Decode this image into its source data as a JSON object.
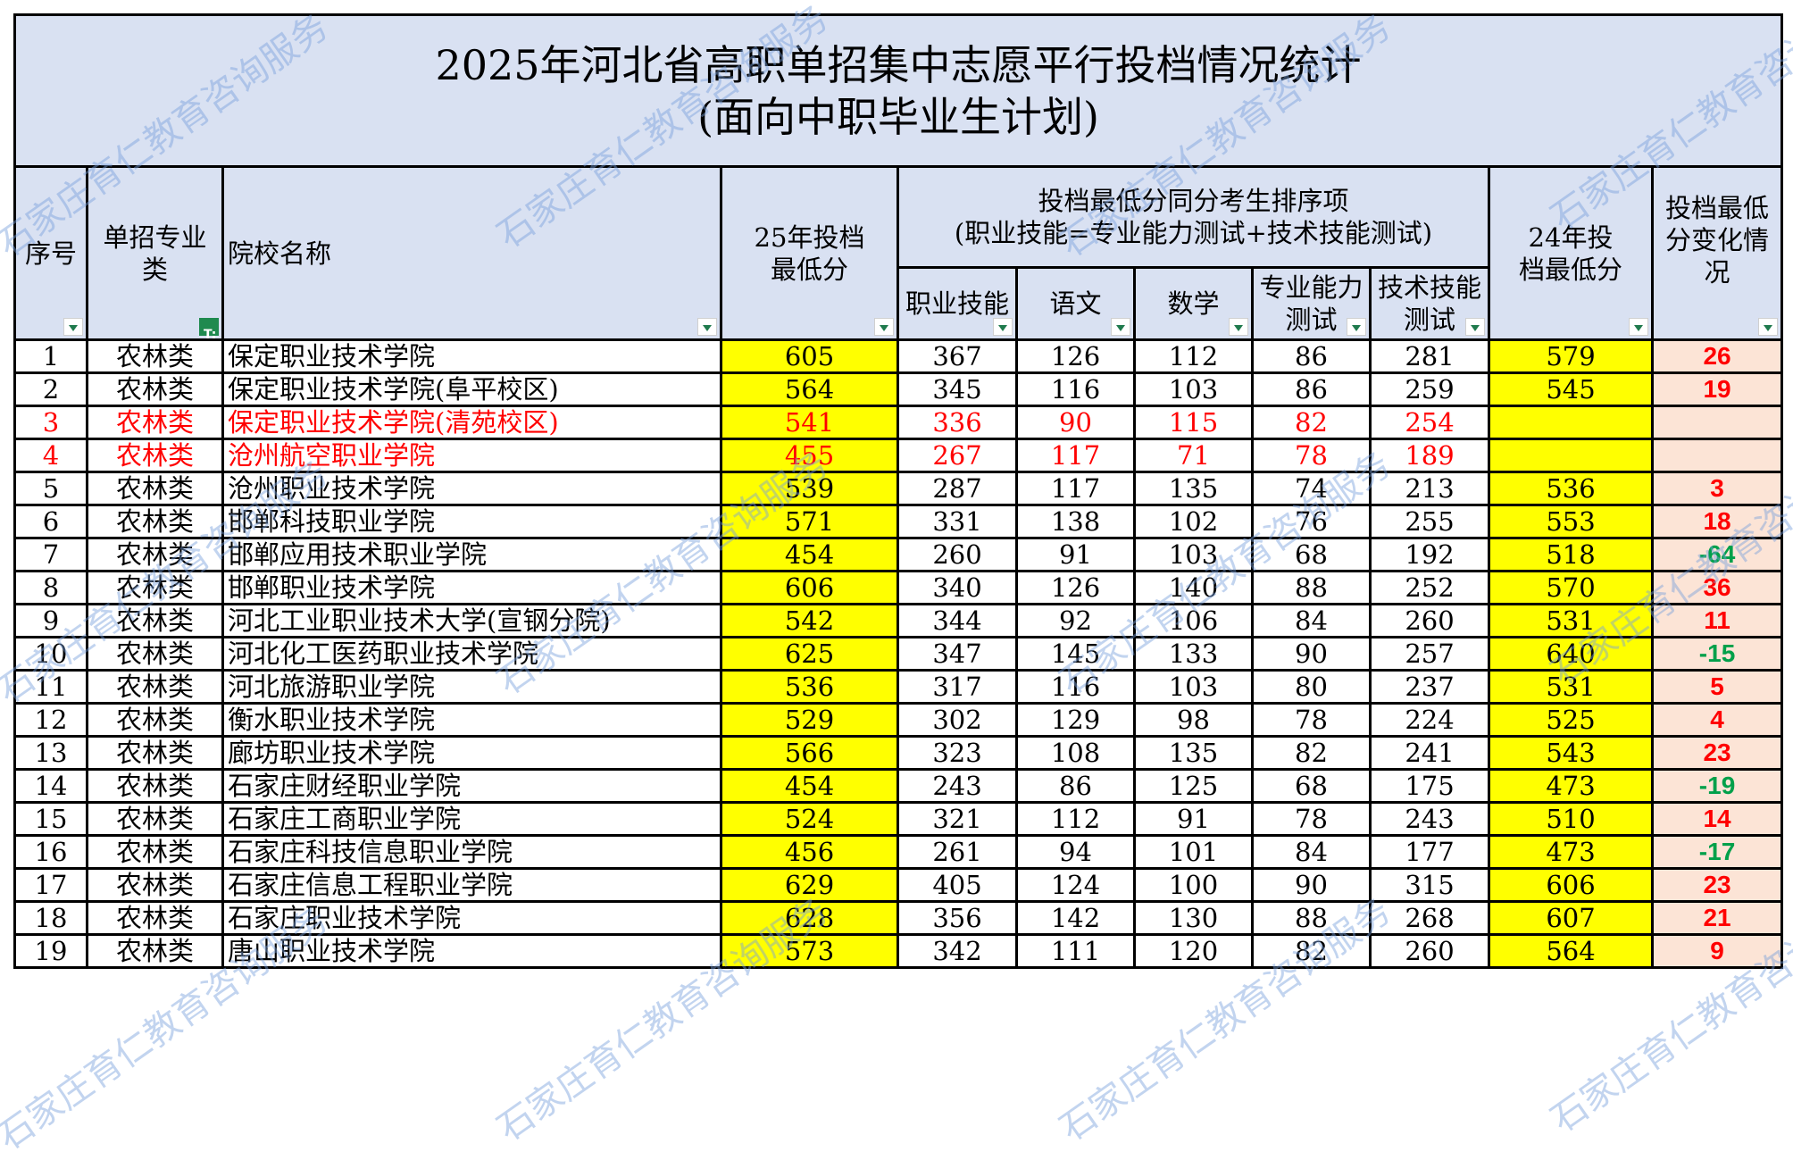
{
  "title": {
    "line1": "2025年河北省高职单招集中志愿平行投档情况统计",
    "line2": "(面向中职毕业生计划)"
  },
  "headers": {
    "index": "序号",
    "category": "单招专业类",
    "school": "院校名称",
    "min25": "25年投档最低分",
    "tiebreak_group_line1": "投档最低分同分考生排序项",
    "tiebreak_group_line2": "(职业技能=专业能力测试+技术技能测试)",
    "vocational": "职业技能",
    "chinese": "语文",
    "math": "数学",
    "professional": "专业能力测试",
    "technical": "技术技能测试",
    "min24": "24年投档最低分",
    "change": "投档最低分变化情况"
  },
  "filters": {
    "active_column": "单招专业类"
  },
  "colors": {
    "header_bg": "#d9e1f2",
    "highlight_yellow": "#ffff00",
    "change_bg": "#fce4d6",
    "positive_change": "#ff0000",
    "negative_change": "#00a04a",
    "highlight_row_text": "#ff0000"
  },
  "rows": [
    {
      "index": "1",
      "category": "农林类",
      "school": "保定职业技术学院",
      "min25": "605",
      "vocational": "367",
      "chinese": "126",
      "math": "112",
      "professional": "86",
      "technical": "281",
      "min24": "579",
      "change": "26",
      "highlight": false
    },
    {
      "index": "2",
      "category": "农林类",
      "school": "保定职业技术学院(阜平校区)",
      "min25": "564",
      "vocational": "345",
      "chinese": "116",
      "math": "103",
      "professional": "86",
      "technical": "259",
      "min24": "545",
      "change": "19",
      "highlight": false
    },
    {
      "index": "3",
      "category": "农林类",
      "school": "保定职业技术学院(清苑校区)",
      "min25": "541",
      "vocational": "336",
      "chinese": "90",
      "math": "115",
      "professional": "82",
      "technical": "254",
      "min24": "",
      "change": "",
      "highlight": true
    },
    {
      "index": "4",
      "category": "农林类",
      "school": "沧州航空职业学院",
      "min25": "455",
      "vocational": "267",
      "chinese": "117",
      "math": "71",
      "professional": "78",
      "technical": "189",
      "min24": "",
      "change": "",
      "highlight": true
    },
    {
      "index": "5",
      "category": "农林类",
      "school": "沧州职业技术学院",
      "min25": "539",
      "vocational": "287",
      "chinese": "117",
      "math": "135",
      "professional": "74",
      "technical": "213",
      "min24": "536",
      "change": "3",
      "highlight": false
    },
    {
      "index": "6",
      "category": "农林类",
      "school": "邯郸科技职业学院",
      "min25": "571",
      "vocational": "331",
      "chinese": "138",
      "math": "102",
      "professional": "76",
      "technical": "255",
      "min24": "553",
      "change": "18",
      "highlight": false
    },
    {
      "index": "7",
      "category": "农林类",
      "school": "邯郸应用技术职业学院",
      "min25": "454",
      "vocational": "260",
      "chinese": "91",
      "math": "103",
      "professional": "68",
      "technical": "192",
      "min24": "518",
      "change": "-64",
      "highlight": false
    },
    {
      "index": "8",
      "category": "农林类",
      "school": "邯郸职业技术学院",
      "min25": "606",
      "vocational": "340",
      "chinese": "126",
      "math": "140",
      "professional": "88",
      "technical": "252",
      "min24": "570",
      "change": "36",
      "highlight": false
    },
    {
      "index": "9",
      "category": "农林类",
      "school": "河北工业职业技术大学(宣钢分院)",
      "min25": "542",
      "vocational": "344",
      "chinese": "92",
      "math": "106",
      "professional": "84",
      "technical": "260",
      "min24": "531",
      "change": "11",
      "highlight": false
    },
    {
      "index": "10",
      "category": "农林类",
      "school": "河北化工医药职业技术学院",
      "min25": "625",
      "vocational": "347",
      "chinese": "145",
      "math": "133",
      "professional": "90",
      "technical": "257",
      "min24": "640",
      "change": "-15",
      "highlight": false
    },
    {
      "index": "11",
      "category": "农林类",
      "school": "河北旅游职业学院",
      "min25": "536",
      "vocational": "317",
      "chinese": "116",
      "math": "103",
      "professional": "80",
      "technical": "237",
      "min24": "531",
      "change": "5",
      "highlight": false
    },
    {
      "index": "12",
      "category": "农林类",
      "school": "衡水职业技术学院",
      "min25": "529",
      "vocational": "302",
      "chinese": "129",
      "math": "98",
      "professional": "78",
      "technical": "224",
      "min24": "525",
      "change": "4",
      "highlight": false
    },
    {
      "index": "13",
      "category": "农林类",
      "school": "廊坊职业技术学院",
      "min25": "566",
      "vocational": "323",
      "chinese": "108",
      "math": "135",
      "professional": "82",
      "technical": "241",
      "min24": "543",
      "change": "23",
      "highlight": false
    },
    {
      "index": "14",
      "category": "农林类",
      "school": "石家庄财经职业学院",
      "min25": "454",
      "vocational": "243",
      "chinese": "86",
      "math": "125",
      "professional": "68",
      "technical": "175",
      "min24": "473",
      "change": "-19",
      "highlight": false
    },
    {
      "index": "15",
      "category": "农林类",
      "school": "石家庄工商职业学院",
      "min25": "524",
      "vocational": "321",
      "chinese": "112",
      "math": "91",
      "professional": "78",
      "technical": "243",
      "min24": "510",
      "change": "14",
      "highlight": false
    },
    {
      "index": "16",
      "category": "农林类",
      "school": "石家庄科技信息职业学院",
      "min25": "456",
      "vocational": "261",
      "chinese": "94",
      "math": "101",
      "professional": "84",
      "technical": "177",
      "min24": "473",
      "change": "-17",
      "highlight": false
    },
    {
      "index": "17",
      "category": "农林类",
      "school": "石家庄信息工程职业学院",
      "min25": "629",
      "vocational": "405",
      "chinese": "124",
      "math": "100",
      "professional": "90",
      "technical": "315",
      "min24": "606",
      "change": "23",
      "highlight": false
    },
    {
      "index": "18",
      "category": "农林类",
      "school": "石家庄职业技术学院",
      "min25": "628",
      "vocational": "356",
      "chinese": "142",
      "math": "130",
      "professional": "88",
      "technical": "268",
      "min24": "607",
      "change": "21",
      "highlight": false
    },
    {
      "index": "19",
      "category": "农林类",
      "school": "唐山职业技术学院",
      "min25": "573",
      "vocational": "342",
      "chinese": "111",
      "math": "120",
      "professional": "82",
      "technical": "260",
      "min24": "564",
      "change": "9",
      "highlight": false
    }
  ],
  "watermark": {
    "text": "石家庄育仁教育咨询服务"
  }
}
